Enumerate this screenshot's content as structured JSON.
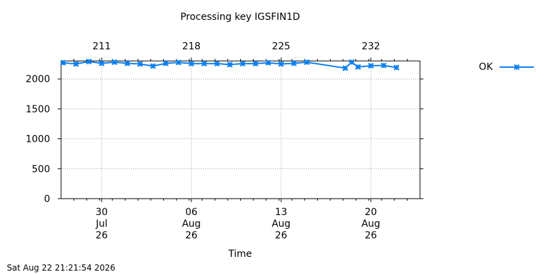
{
  "chart_data": {
    "type": "line",
    "title": "Processing key IGSFIN1D",
    "xlabel": "Time",
    "ylabel": "",
    "ylim": [
      0,
      2300
    ],
    "xlim": [
      "2026-07-26T20:00",
      "2026-08-23T20:00"
    ],
    "y_ticks": [
      0,
      500,
      1000,
      1500,
      2000
    ],
    "y_tick_labels": [
      "0",
      "500",
      "1000",
      "1500",
      "2000"
    ],
    "x_ticks": [
      "2026-07-30",
      "2026-08-06",
      "2026-08-13",
      "2026-08-20"
    ],
    "x_tick_labels": [
      [
        "30",
        "Jul",
        "26"
      ],
      [
        "06",
        "Aug",
        "26"
      ],
      [
        "13",
        "Aug",
        "26"
      ],
      [
        "20",
        "Aug",
        "26"
      ]
    ],
    "x2_ticks": [
      "2026-07-30",
      "2026-08-06",
      "2026-08-13",
      "2026-08-20"
    ],
    "x2_tick_labels": [
      "211",
      "218",
      "225",
      "232"
    ],
    "grid": true,
    "legend_position": "right",
    "series": [
      {
        "name": "OK",
        "color": "#0a7ff0",
        "marker": "x",
        "x": [
          "2026-07-27",
          "2026-07-28",
          "2026-07-29",
          "2026-07-30",
          "2026-07-31",
          "2026-08-01",
          "2026-08-02",
          "2026-08-03",
          "2026-08-04",
          "2026-08-05",
          "2026-08-06",
          "2026-08-07",
          "2026-08-08",
          "2026-08-09",
          "2026-08-10",
          "2026-08-11",
          "2026-08-12",
          "2026-08-13",
          "2026-08-14",
          "2026-08-15",
          "2026-08-18",
          "2026-08-18T12:00",
          "2026-08-19",
          "2026-08-20",
          "2026-08-21",
          "2026-08-22"
        ],
        "values": [
          2270,
          2250,
          2290,
          2260,
          2280,
          2260,
          2250,
          2215,
          2260,
          2275,
          2255,
          2255,
          2255,
          2240,
          2255,
          2255,
          2270,
          2250,
          2260,
          2280,
          2180,
          2280,
          2200,
          2220,
          2225,
          2190
        ]
      }
    ]
  },
  "footer": {
    "timestamp": "Sat Aug 22 21:21:54 2026"
  },
  "colors": {
    "series": "#0a7ff0",
    "grid": "#a0a0a0",
    "axis": "#000000"
  }
}
